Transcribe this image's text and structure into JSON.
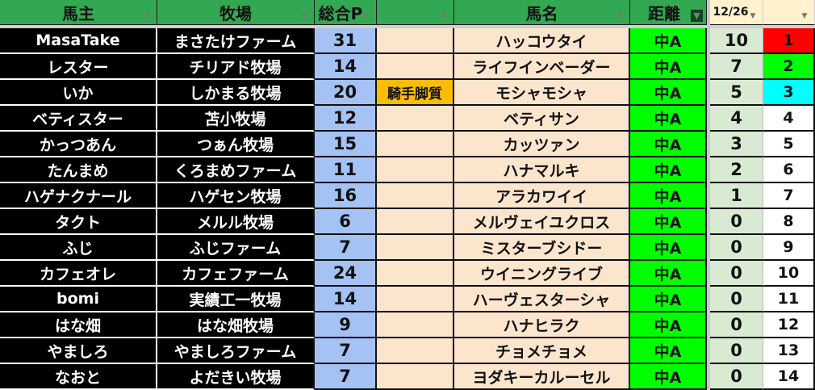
{
  "headers": {
    "owner": "馬主",
    "farm": "牧場",
    "points": "総合P",
    "note": "",
    "horse": "馬名",
    "distance": "距離",
    "date": "12/26",
    "rank": ""
  },
  "filter_icon": "filter-icon",
  "rank_colors": {
    "1": "#ff0000",
    "2": "#00ff00",
    "3": "#00ffff"
  },
  "rows": [
    {
      "owner": "MasaTake",
      "farm": "まさたけファーム",
      "points": "31",
      "note": "",
      "horse": "ハッコウタイ",
      "distance": "中A",
      "score": "10",
      "rank": "1"
    },
    {
      "owner": "レスター",
      "farm": "チリアド牧場",
      "points": "14",
      "note": "",
      "horse": "ライフインベーダー",
      "distance": "中A",
      "score": "7",
      "rank": "2"
    },
    {
      "owner": "いか",
      "farm": "しかまる牧場",
      "points": "20",
      "note": "騎手脚質",
      "horse": "モシャモシャ",
      "distance": "中A",
      "score": "5",
      "rank": "3"
    },
    {
      "owner": "ベティスター",
      "farm": "苫小牧場",
      "points": "12",
      "note": "",
      "horse": "ベティサン",
      "distance": "中A",
      "score": "4",
      "rank": "4"
    },
    {
      "owner": "かっつあん",
      "farm": "つぁん牧場",
      "points": "15",
      "note": "",
      "horse": "カッツァン",
      "distance": "中A",
      "score": "3",
      "rank": "5"
    },
    {
      "owner": "たんまめ",
      "farm": "くろまめファーム",
      "points": "11",
      "note": "",
      "horse": "ハナマルキ",
      "distance": "中A",
      "score": "2",
      "rank": "6"
    },
    {
      "owner": "ハゲナクナール",
      "farm": "ハゲセン牧場",
      "points": "16",
      "note": "",
      "horse": "アラカワイイ",
      "distance": "中A",
      "score": "1",
      "rank": "7"
    },
    {
      "owner": "タクト",
      "farm": "メルル牧場",
      "points": "6",
      "note": "",
      "horse": "メルヴェイユクロス",
      "distance": "中A",
      "score": "0",
      "rank": "8"
    },
    {
      "owner": "ふじ",
      "farm": "ふじファーム",
      "points": "7",
      "note": "",
      "horse": "ミスターブシドー",
      "distance": "中A",
      "score": "0",
      "rank": "9"
    },
    {
      "owner": "カフェオレ",
      "farm": "カフェファーム",
      "points": "24",
      "note": "",
      "horse": "ウイニングライブ",
      "distance": "中A",
      "score": "0",
      "rank": "10"
    },
    {
      "owner": "bomi",
      "farm": "実績工一牧場",
      "points": "14",
      "note": "",
      "horse": "ハーヴェスターシャ",
      "distance": "中A",
      "score": "0",
      "rank": "11"
    },
    {
      "owner": "はな畑",
      "farm": "はな畑牧場",
      "points": "9",
      "note": "",
      "horse": "ハナヒラク",
      "distance": "中A",
      "score": "0",
      "rank": "12"
    },
    {
      "owner": "やましろ",
      "farm": "やましろファーム",
      "points": "7",
      "note": "",
      "horse": "チョメチョメ",
      "distance": "中A",
      "score": "0",
      "rank": "13"
    },
    {
      "owner": "なおと",
      "farm": "よだきい牧場",
      "points": "7",
      "note": "",
      "horse": "ヨダキーカルーセル",
      "distance": "中A",
      "score": "0",
      "rank": "14"
    }
  ]
}
